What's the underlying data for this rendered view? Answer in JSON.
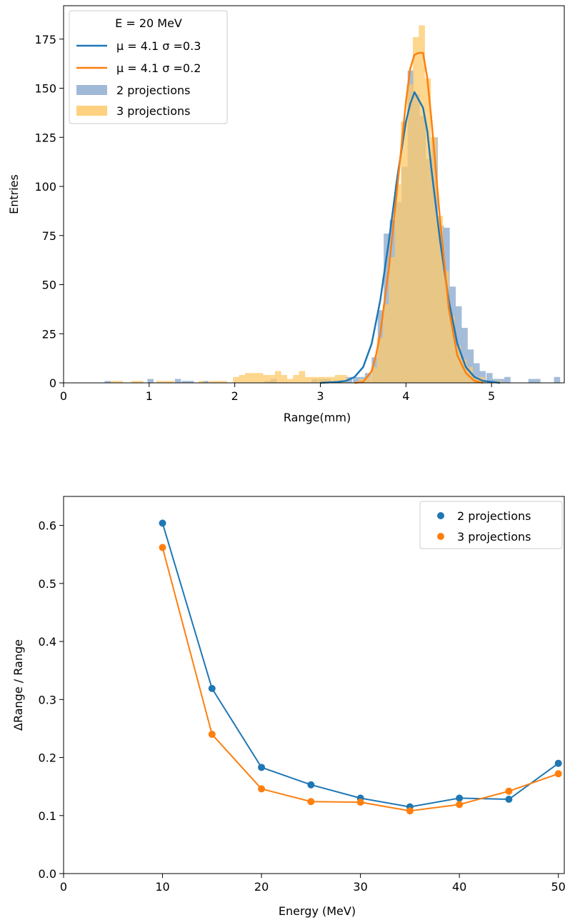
{
  "chart_data": [
    {
      "type": "histogram",
      "xlabel": "Range(mm)",
      "ylabel": "Entries",
      "xlim": [
        0,
        5.85
      ],
      "ylim": [
        0,
        192
      ],
      "xticks": [
        "0",
        "1",
        "2",
        "3",
        "4",
        "5"
      ],
      "yticks": [
        "0",
        "25",
        "50",
        "75",
        "100",
        "125",
        "150",
        "175"
      ],
      "legend": {
        "title": "E = 20 MeV",
        "position": "top-left",
        "entries": [
          "μ = 4.1 σ =0.3",
          "μ = 4.1 σ =0.2",
          "2 projections",
          "3 projections"
        ]
      },
      "bin_width": 0.072,
      "series": [
        {
          "name": "2 projections",
          "kind": "hist",
          "color": "#8fadd0",
          "bins": [
            [
              0.48,
              1
            ],
            [
              0.98,
              2
            ],
            [
              1.3,
              2
            ],
            [
              1.38,
              1
            ],
            [
              1.45,
              1
            ],
            [
              1.62,
              1
            ],
            [
              2.35,
              1
            ],
            [
              2.42,
              2
            ],
            [
              2.9,
              2
            ],
            [
              2.98,
              2
            ],
            [
              3.05,
              2
            ],
            [
              3.3,
              3
            ],
            [
              3.38,
              3
            ],
            [
              3.45,
              3
            ],
            [
              3.52,
              5
            ],
            [
              3.6,
              13
            ],
            [
              3.67,
              37
            ],
            [
              3.74,
              76
            ],
            [
              3.81,
              83
            ],
            [
              3.88,
              92
            ],
            [
              3.95,
              110
            ],
            [
              4.02,
              159
            ],
            [
              4.09,
              147
            ],
            [
              4.16,
              136
            ],
            [
              4.23,
              114
            ],
            [
              4.3,
              125
            ],
            [
              4.37,
              80
            ],
            [
              4.44,
              79
            ],
            [
              4.51,
              49
            ],
            [
              4.58,
              39
            ],
            [
              4.65,
              28
            ],
            [
              4.72,
              17
            ],
            [
              4.79,
              10
            ],
            [
              4.86,
              6
            ],
            [
              4.94,
              5
            ],
            [
              5.01,
              2
            ],
            [
              5.08,
              2
            ],
            [
              5.15,
              3
            ],
            [
              5.43,
              2
            ],
            [
              5.5,
              2
            ],
            [
              5.73,
              3
            ]
          ]
        },
        {
          "name": "3 projections",
          "kind": "hist",
          "color": "#fdc96a",
          "bins": [
            [
              0.55,
              1
            ],
            [
              0.62,
              1
            ],
            [
              0.79,
              1
            ],
            [
              0.86,
              1
            ],
            [
              1.08,
              1
            ],
            [
              1.15,
              1
            ],
            [
              1.22,
              1
            ],
            [
              1.58,
              1
            ],
            [
              1.7,
              1
            ],
            [
              1.77,
              1
            ],
            [
              1.84,
              1
            ],
            [
              1.98,
              3
            ],
            [
              2.05,
              4
            ],
            [
              2.12,
              5
            ],
            [
              2.19,
              5
            ],
            [
              2.26,
              5
            ],
            [
              2.33,
              4
            ],
            [
              2.4,
              4
            ],
            [
              2.47,
              6
            ],
            [
              2.54,
              4
            ],
            [
              2.61,
              2
            ],
            [
              2.68,
              4
            ],
            [
              2.75,
              6
            ],
            [
              2.82,
              3
            ],
            [
              2.89,
              3
            ],
            [
              2.96,
              3
            ],
            [
              3.03,
              3
            ],
            [
              3.1,
              3
            ],
            [
              3.17,
              4
            ],
            [
              3.24,
              4
            ],
            [
              3.45,
              2
            ],
            [
              3.52,
              3
            ],
            [
              3.59,
              8
            ],
            [
              3.66,
              23
            ],
            [
              3.73,
              40
            ],
            [
              3.8,
              64
            ],
            [
              3.87,
              101
            ],
            [
              3.94,
              133
            ],
            [
              4.01,
              152
            ],
            [
              4.08,
              176
            ],
            [
              4.15,
              182
            ],
            [
              4.22,
              155
            ],
            [
              4.29,
              125
            ],
            [
              4.36,
              85
            ],
            [
              4.43,
              57
            ],
            [
              4.5,
              34
            ],
            [
              4.57,
              19
            ],
            [
              4.64,
              12
            ],
            [
              4.71,
              8
            ],
            [
              4.78,
              3
            ],
            [
              4.85,
              3
            ],
            [
              5.05,
              1
            ]
          ]
        },
        {
          "name": "μ = 4.1 σ =0.3",
          "kind": "line",
          "color": "#1f77b4",
          "x": [
            3.0,
            3.2,
            3.3,
            3.4,
            3.5,
            3.6,
            3.7,
            3.8,
            3.9,
            4.0,
            4.05,
            4.1,
            4.15,
            4.2,
            4.25,
            4.3,
            4.4,
            4.5,
            4.6,
            4.7,
            4.8,
            4.9,
            5.0,
            5.1
          ],
          "y": [
            0,
            0.5,
            1,
            3,
            8,
            20,
            42,
            72,
            105,
            133,
            142,
            148,
            144,
            140,
            128,
            108,
            72,
            42,
            20,
            8,
            3,
            1,
            0.5,
            0
          ]
        },
        {
          "name": "μ = 4.1 σ =0.2",
          "kind": "line",
          "color": "#ff7f0e",
          "x": [
            3.4,
            3.5,
            3.6,
            3.65,
            3.7,
            3.8,
            3.9,
            4.0,
            4.05,
            4.1,
            4.15,
            4.2,
            4.25,
            4.3,
            4.35,
            4.4,
            4.5,
            4.6,
            4.7,
            4.8,
            4.9
          ],
          "y": [
            0,
            0.5,
            6,
            14,
            25,
            58,
            100,
            143,
            160,
            167,
            168,
            168,
            155,
            133,
            108,
            82,
            38,
            14,
            5,
            1,
            0
          ]
        }
      ]
    },
    {
      "type": "line",
      "xlabel": "Energy (MeV)",
      "ylabel": "ΔRange / Range",
      "xlim": [
        0,
        50.6
      ],
      "ylim": [
        0,
        0.65
      ],
      "xticks": [
        "0",
        "10",
        "20",
        "30",
        "40",
        "50"
      ],
      "yticks": [
        "0.0",
        "0.1",
        "0.2",
        "0.3",
        "0.4",
        "0.5",
        "0.6"
      ],
      "legend": {
        "position": "top-right",
        "entries": [
          "2 projections",
          "3 projections"
        ]
      },
      "x": [
        10,
        15,
        20,
        25,
        30,
        35,
        40,
        45,
        50
      ],
      "series": [
        {
          "name": "2 projections",
          "color": "#1f77b4",
          "values": [
            0.604,
            0.319,
            0.183,
            0.153,
            0.13,
            0.115,
            0.13,
            0.128,
            0.19
          ]
        },
        {
          "name": "3 projections",
          "color": "#ff7f0e",
          "values": [
            0.562,
            0.24,
            0.146,
            0.124,
            0.123,
            0.108,
            0.119,
            0.142,
            0.172
          ]
        }
      ]
    }
  ]
}
